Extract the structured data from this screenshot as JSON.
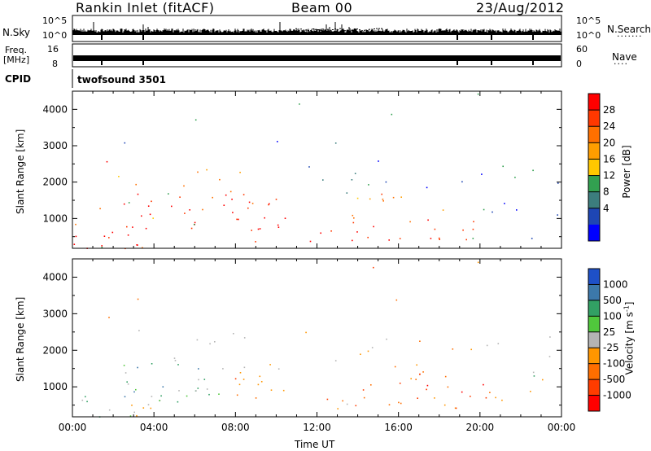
{
  "header": {
    "title": "Rankin Inlet (fitACF)",
    "beam": "Beam 00",
    "date": "23/Aug/2012"
  },
  "nsky_panel": {
    "left_label": "N.Sky",
    "right_label": "N.Search",
    "left_ticks": [
      "10^5",
      "10^0"
    ],
    "right_ticks": [
      "10^5",
      "10^0"
    ]
  },
  "freq_panel": {
    "left_label_line1": "Freq.",
    "left_label_line2": "[MHz]",
    "right_label": "Nave",
    "left_ticks": [
      "16",
      "8"
    ],
    "right_ticks": [
      "60",
      "0"
    ]
  },
  "cpid": {
    "label": "CPID",
    "value": "twofsound 3501"
  },
  "chart_data": [
    {
      "type": "heatmap",
      "ylabel": "Slant Range [km]",
      "y_ticks": [
        1000,
        2000,
        3000,
        4000
      ],
      "ylim": [
        180,
        4500
      ],
      "x_ticks": [
        "00:00",
        "04:00",
        "08:00",
        "12:00",
        "16:00",
        "20:00",
        "00:00"
      ],
      "xlim_hours": [
        0,
        24
      ],
      "colorbar": {
        "label": "Power [dB]",
        "ticks": [
          "28",
          "24",
          "20",
          "16",
          "12",
          "8",
          "4"
        ],
        "colors": [
          "#ff0000",
          "#ff3800",
          "#ff7000",
          "#ff9e00",
          "#ffc800",
          "#32a050",
          "#3c7d7d",
          "#1e46b4",
          "#0000ff"
        ]
      }
    },
    {
      "type": "heatmap",
      "ylabel": "Slant Range [km]",
      "y_ticks": [
        1000,
        2000,
        3000,
        4000
      ],
      "ylim": [
        180,
        4500
      ],
      "x_ticks": [
        "00:00",
        "04:00",
        "08:00",
        "12:00",
        "16:00",
        "20:00",
        "00:00"
      ],
      "xlim_hours": [
        0,
        24
      ],
      "xlabel": "Time UT",
      "colorbar": {
        "label": "Velocity [m s",
        "label_sup": "-1",
        "label_end": "]",
        "ticks": [
          "1000",
          "500",
          "100",
          "25",
          "-25",
          "-100",
          "-500",
          "-1000"
        ],
        "colors": [
          "#1e50c8",
          "#3c78aa",
          "#32a064",
          "#50c83c",
          "#b4b4b4",
          "#ff9600",
          "#ff6e00",
          "#ff3c00",
          "#ff0000"
        ]
      }
    }
  ]
}
